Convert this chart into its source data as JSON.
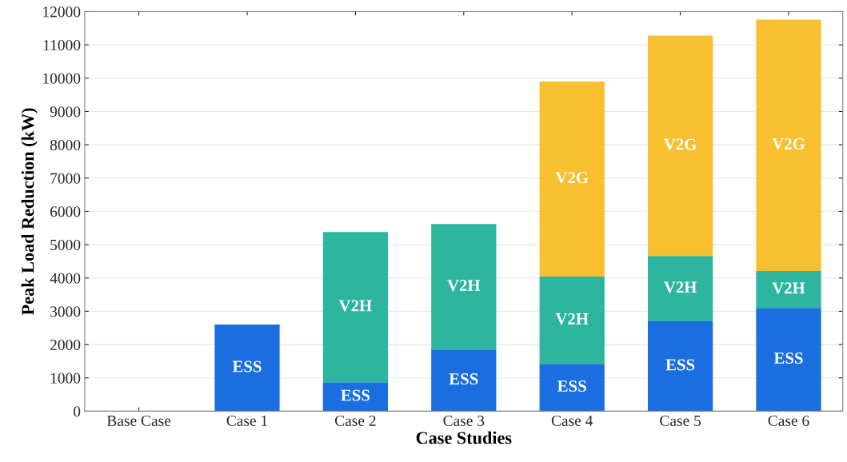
{
  "chart_data": {
    "type": "bar",
    "stacked": true,
    "xlabel": "Case Studies",
    "ylabel": "Peak Load Reduction (kW)",
    "categories": [
      "Base Case",
      "Case 1",
      "Case 2",
      "Case 3",
      "Case 4",
      "Case 5",
      "Case 6"
    ],
    "series": [
      {
        "name": "ESS",
        "color": "#1a6ee0",
        "values": [
          null,
          2600,
          870,
          1850,
          1420,
          2700,
          3100
        ]
      },
      {
        "name": "V2H",
        "color": "#2db5a0",
        "values": [
          null,
          null,
          4510,
          3770,
          2620,
          1960,
          1110
        ]
      },
      {
        "name": "V2G",
        "color": "#f8c030",
        "values": [
          null,
          null,
          null,
          null,
          5860,
          6620,
          7550
        ]
      }
    ],
    "ylim": [
      0,
      12000
    ],
    "yticks": [
      0,
      1000,
      2000,
      3000,
      4000,
      5000,
      6000,
      7000,
      8000,
      9000,
      10000,
      11000,
      12000
    ],
    "grid": "y"
  }
}
